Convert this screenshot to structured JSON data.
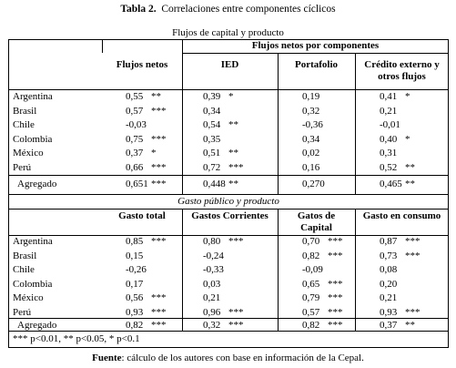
{
  "title_bold": "Tabla 2.",
  "title_rest": "Correlaciones entre componentes cíclicos",
  "section1": {
    "title": "Flujos de capital y producto",
    "group_header": "Flujos netos por componentes",
    "headers": [
      "Flujos netos",
      "IED",
      "Portafolio",
      "Crédito externo y otros flujos"
    ],
    "rows": [
      {
        "country": "Argentina",
        "values": [
          "0,55",
          "0,39",
          "0,19",
          "0,41"
        ],
        "stars": [
          "**",
          "*",
          "",
          "*"
        ]
      },
      {
        "country": "Brasil",
        "values": [
          "0,57",
          "0,34",
          "0,32",
          "0,21"
        ],
        "stars": [
          "***",
          "",
          "",
          ""
        ]
      },
      {
        "country": "Chile",
        "values": [
          "-0,03",
          "0,54",
          "-0,36",
          "-0,01"
        ],
        "stars": [
          "",
          "**",
          "",
          ""
        ]
      },
      {
        "country": "Colombia",
        "values": [
          "0,75",
          "0,35",
          "0,34",
          "0,40"
        ],
        "stars": [
          "***",
          "",
          "",
          "*"
        ]
      },
      {
        "country": "México",
        "values": [
          "0,37",
          "0,51",
          "0,02",
          "0,31"
        ],
        "stars": [
          "*",
          "**",
          "",
          ""
        ]
      },
      {
        "country": "Perú",
        "values": [
          "0,66",
          "0,72",
          "0,16",
          "0,52"
        ],
        "stars": [
          "***",
          "***",
          "",
          "**"
        ]
      }
    ],
    "aggregate": {
      "country": "Agregado",
      "values": [
        "0,651",
        "0,448",
        "0,270",
        "0,465"
      ],
      "stars": [
        "***",
        "**",
        "",
        "**"
      ]
    }
  },
  "section2": {
    "title": "Gasto público y producto",
    "headers": [
      "Gasto total",
      "Gastos Corrientes",
      "Gatos de Capital",
      "Gasto en consumo"
    ],
    "rows": [
      {
        "country": "Argentina",
        "values": [
          "0,85",
          "0,80",
          "0,70",
          "0,87"
        ],
        "stars": [
          "***",
          "***",
          "***",
          "***"
        ]
      },
      {
        "country": "Brasil",
        "values": [
          "0,15",
          "-0,24",
          "0,82",
          "0,73"
        ],
        "stars": [
          "",
          "",
          "***",
          "***"
        ]
      },
      {
        "country": "Chile",
        "values": [
          "-0,26",
          "-0,33",
          "-0,09",
          "0,08"
        ],
        "stars": [
          "",
          "",
          "",
          ""
        ]
      },
      {
        "country": "Colombia",
        "values": [
          "0,17",
          "0,03",
          "0,65",
          "0,20"
        ],
        "stars": [
          "",
          "",
          "***",
          ""
        ]
      },
      {
        "country": "México",
        "values": [
          "0,56",
          "0,21",
          "0,79",
          "0,21"
        ],
        "stars": [
          "***",
          "",
          "***",
          ""
        ]
      },
      {
        "country": "Perú",
        "values": [
          "0,93",
          "0,96",
          "0,57",
          "0,93"
        ],
        "stars": [
          "***",
          "***",
          "***",
          "***"
        ]
      }
    ],
    "aggregate": {
      "country": "Agregado",
      "values": [
        "0,82",
        "0,32",
        "0,82",
        "0,37"
      ],
      "stars": [
        "***",
        "***",
        "***",
        "**"
      ]
    }
  },
  "significance_note": "*** p<0.01, ** p<0.05, * p<0.1",
  "source_label": "Fuente",
  "source_text": ": cálculo de los autores con base en información de la Cepal."
}
